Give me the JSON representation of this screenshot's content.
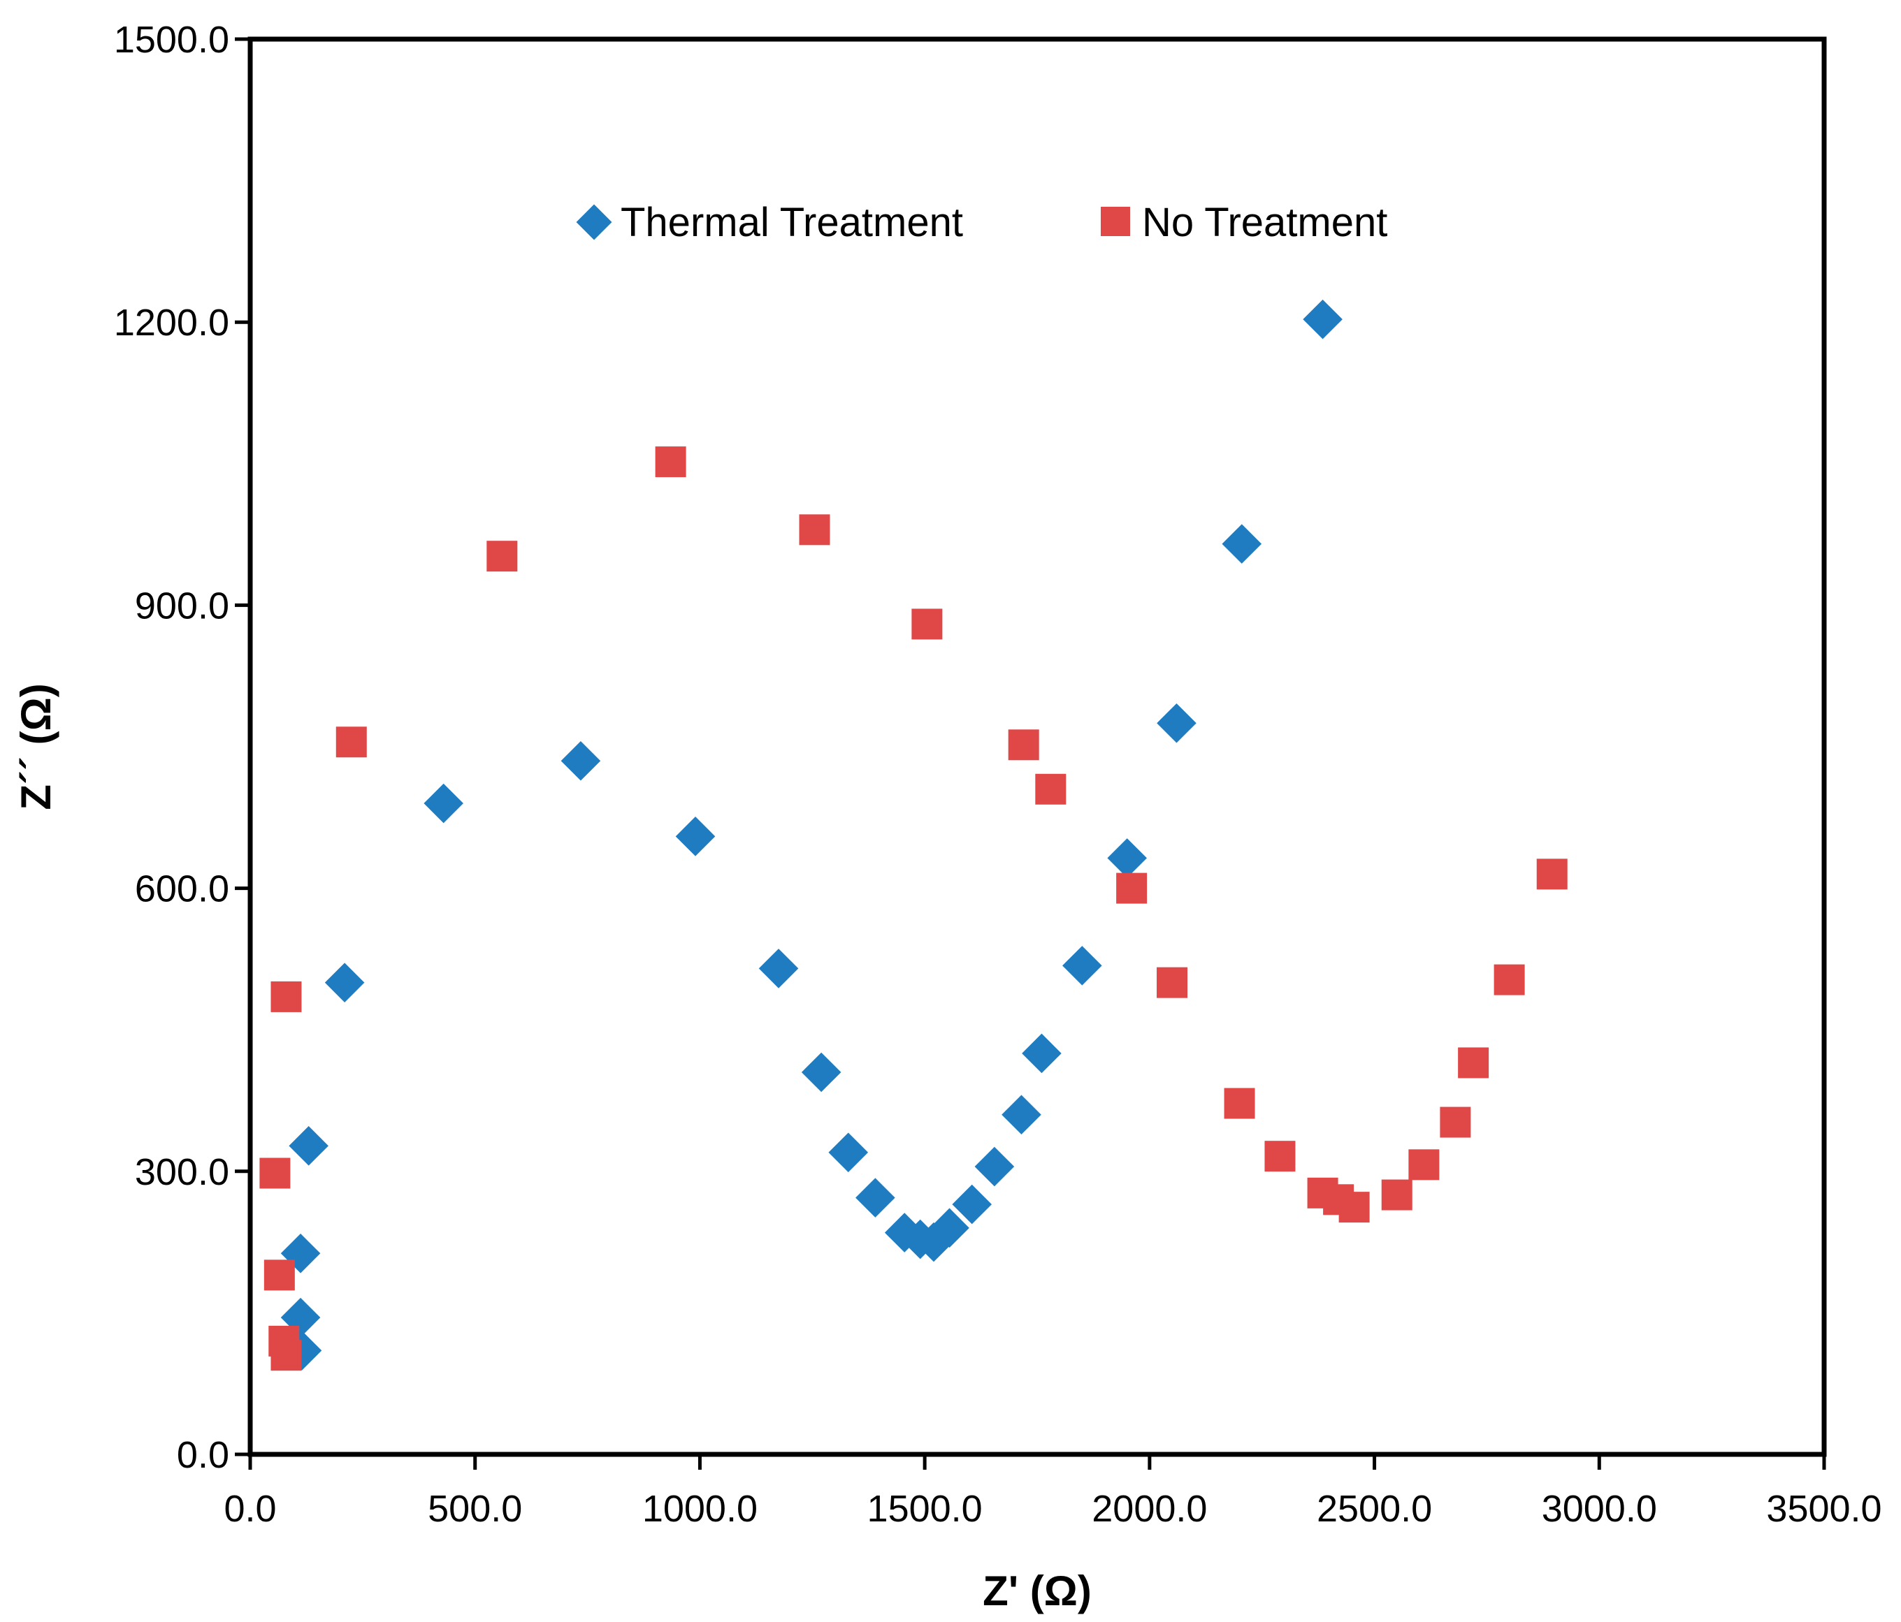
{
  "chart_data": {
    "type": "scatter",
    "title": "",
    "xlabel": "Z' (Ω)",
    "ylabel": "Z´´ (Ω)",
    "xlim": [
      0,
      3500
    ],
    "ylim": [
      0,
      1500
    ],
    "xticks": [
      0,
      500,
      1000,
      1500,
      2000,
      2500,
      3000,
      3500
    ],
    "yticks": [
      0,
      300,
      600,
      900,
      1200,
      1500
    ],
    "xtick_labels": [
      "0.0",
      "500.0",
      "1000.0",
      "1500.0",
      "2000.0",
      "2500.0",
      "3000.0",
      "3500.0"
    ],
    "ytick_labels": [
      "0.0",
      "300.0",
      "600.0",
      "900.0",
      "1200.0",
      "1500.0"
    ],
    "grid": false,
    "legend_position": "top-center",
    "series": [
      {
        "name": "Thermal Treatment",
        "marker": "diamond",
        "color": "#1F7CC1",
        "points": [
          {
            "x": 115,
            "y": 110
          },
          {
            "x": 112,
            "y": 145
          },
          {
            "x": 112,
            "y": 213
          },
          {
            "x": 130,
            "y": 327
          },
          {
            "x": 210,
            "y": 500
          },
          {
            "x": 430,
            "y": 690
          },
          {
            "x": 735,
            "y": 735
          },
          {
            "x": 990,
            "y": 655
          },
          {
            "x": 1175,
            "y": 515
          },
          {
            "x": 1270,
            "y": 405
          },
          {
            "x": 1330,
            "y": 320
          },
          {
            "x": 1390,
            "y": 272
          },
          {
            "x": 1455,
            "y": 235
          },
          {
            "x": 1490,
            "y": 228
          },
          {
            "x": 1520,
            "y": 225
          },
          {
            "x": 1555,
            "y": 240
          },
          {
            "x": 1605,
            "y": 265
          },
          {
            "x": 1655,
            "y": 305
          },
          {
            "x": 1715,
            "y": 360
          },
          {
            "x": 1760,
            "y": 425
          },
          {
            "x": 1850,
            "y": 518
          },
          {
            "x": 1950,
            "y": 632
          },
          {
            "x": 2060,
            "y": 775
          },
          {
            "x": 2205,
            "y": 965
          },
          {
            "x": 2385,
            "y": 1203
          }
        ]
      },
      {
        "name": "No Treatment",
        "marker": "square",
        "color": "#E04848",
        "points": [
          {
            "x": 80,
            "y": 105
          },
          {
            "x": 75,
            "y": 120
          },
          {
            "x": 65,
            "y": 190
          },
          {
            "x": 55,
            "y": 298
          },
          {
            "x": 80,
            "y": 485
          },
          {
            "x": 225,
            "y": 755
          },
          {
            "x": 560,
            "y": 952
          },
          {
            "x": 935,
            "y": 1052
          },
          {
            "x": 1255,
            "y": 980
          },
          {
            "x": 1505,
            "y": 880
          },
          {
            "x": 1720,
            "y": 752
          },
          {
            "x": 1780,
            "y": 705
          },
          {
            "x": 1960,
            "y": 600
          },
          {
            "x": 2050,
            "y": 500
          },
          {
            "x": 2200,
            "y": 372
          },
          {
            "x": 2290,
            "y": 316
          },
          {
            "x": 2385,
            "y": 277
          },
          {
            "x": 2420,
            "y": 270
          },
          {
            "x": 2455,
            "y": 262
          },
          {
            "x": 2550,
            "y": 275
          },
          {
            "x": 2610,
            "y": 307
          },
          {
            "x": 2680,
            "y": 352
          },
          {
            "x": 2720,
            "y": 415
          },
          {
            "x": 2800,
            "y": 503
          },
          {
            "x": 2895,
            "y": 615
          }
        ]
      }
    ]
  }
}
